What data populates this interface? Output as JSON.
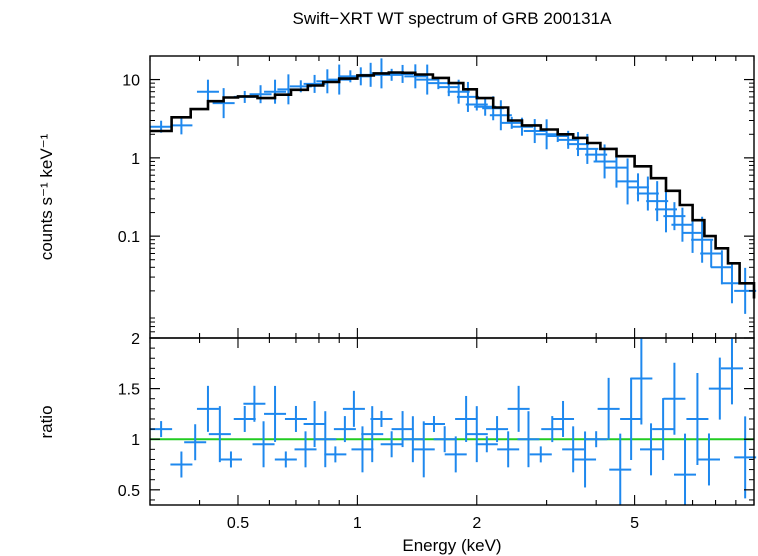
{
  "chart_data": [
    {
      "type": "scatter",
      "title": "Swift−XRT WT spectrum of GRB 200131A",
      "xlabel": "Energy (keV)",
      "ylabel": "counts s⁻¹ keV⁻¹",
      "xscale": "log",
      "yscale": "log",
      "xlim": [
        0.3,
        10
      ],
      "ylim": [
        0.005,
        20
      ],
      "xticks": [
        0.5,
        1,
        2,
        5
      ],
      "xtick_labels": [
        "0.5",
        "1",
        "2",
        "5"
      ],
      "yticks": [
        10,
        1,
        0.1
      ],
      "ytick_labels": [
        "10",
        "1",
        "0.1"
      ],
      "grid": false,
      "colors": {
        "data": "#1e88ee",
        "model": "#000000"
      },
      "series": [
        {
          "kind": "data",
          "x": [
            0.32,
            0.36,
            0.42,
            0.46,
            0.52,
            0.57,
            0.62,
            0.67,
            0.72,
            0.78,
            0.84,
            0.9,
            0.96,
            1.02,
            1.08,
            1.15,
            1.22,
            1.3,
            1.4,
            1.5,
            1.6,
            1.7,
            1.8,
            1.9,
            2.0,
            2.1,
            2.2,
            2.3,
            2.45,
            2.6,
            2.8,
            3.0,
            3.2,
            3.4,
            3.6,
            3.8,
            4.0,
            4.2,
            4.5,
            4.8,
            5.1,
            5.4,
            5.7,
            6.0,
            6.3,
            6.6,
            7.0,
            7.4,
            7.8,
            8.3,
            8.8,
            9.5
          ],
          "y": [
            2.5,
            2.6,
            7.0,
            5.0,
            6.0,
            6.5,
            7.0,
            7.5,
            8.2,
            8.8,
            9.5,
            10.0,
            11.0,
            11.0,
            11.5,
            12.0,
            11.5,
            11.8,
            11.0,
            10.0,
            9.0,
            8.0,
            7.0,
            6.0,
            4.8,
            4.5,
            4.3,
            3.5,
            2.8,
            2.5,
            2.2,
            2.0,
            1.9,
            1.7,
            1.5,
            1.3,
            1.1,
            0.9,
            0.75,
            0.5,
            0.42,
            0.35,
            0.28,
            0.22,
            0.18,
            0.14,
            0.11,
            0.09,
            0.06,
            0.04,
            0.025,
            0.02
          ]
        },
        {
          "kind": "model",
          "x": [
            0.3,
            0.34,
            0.38,
            0.42,
            0.46,
            0.5,
            0.56,
            0.62,
            0.68,
            0.75,
            0.82,
            0.9,
            1.0,
            1.1,
            1.2,
            1.3,
            1.4,
            1.55,
            1.7,
            1.85,
            2.0,
            2.2,
            2.4,
            2.6,
            2.9,
            3.2,
            3.5,
            3.8,
            4.1,
            4.5,
            5.0,
            5.5,
            6.0,
            6.5,
            7.0,
            7.5,
            8.0,
            8.6,
            9.2,
            10.0
          ],
          "y": [
            2.2,
            3.3,
            4.2,
            5.3,
            5.9,
            6.1,
            5.8,
            6.4,
            7.4,
            8.4,
            9.3,
            10.3,
            11.3,
            12.0,
            12.3,
            12.2,
            11.6,
            10.5,
            9.0,
            7.5,
            5.8,
            4.4,
            3.0,
            2.6,
            2.3,
            2.0,
            1.8,
            1.55,
            1.3,
            1.05,
            0.78,
            0.55,
            0.38,
            0.25,
            0.16,
            0.1,
            0.07,
            0.045,
            0.025,
            0.016
          ]
        }
      ]
    },
    {
      "type": "scatter",
      "xlabel": "Energy (keV)",
      "ylabel": "ratio",
      "xscale": "log",
      "xlim": [
        0.3,
        10
      ],
      "ylim": [
        0.35,
        2.0
      ],
      "xticks": [
        0.5,
        1,
        2,
        5
      ],
      "xtick_labels": [
        "0.5",
        "1",
        "2",
        "5"
      ],
      "yticks": [
        2,
        1.5,
        1,
        0.5
      ],
      "ytick_labels": [
        "2",
        "1.5",
        "1",
        "0.5"
      ],
      "reference_line": 1.0,
      "colors": {
        "data": "#1e88ee",
        "reference": "#22cc22"
      },
      "series": [
        {
          "kind": "data",
          "x": [
            0.32,
            0.36,
            0.39,
            0.42,
            0.45,
            0.48,
            0.52,
            0.55,
            0.58,
            0.62,
            0.66,
            0.7,
            0.74,
            0.78,
            0.83,
            0.88,
            0.93,
            0.98,
            1.03,
            1.09,
            1.15,
            1.22,
            1.3,
            1.38,
            1.47,
            1.56,
            1.66,
            1.77,
            1.88,
            2.0,
            2.12,
            2.25,
            2.4,
            2.55,
            2.7,
            2.9,
            3.1,
            3.3,
            3.5,
            3.75,
            4.0,
            4.3,
            4.6,
            4.9,
            5.2,
            5.5,
            5.9,
            6.3,
            6.7,
            7.2,
            7.7,
            8.2,
            8.8,
            9.5
          ],
          "y": [
            1.1,
            0.75,
            0.97,
            1.3,
            1.05,
            0.8,
            1.2,
            1.35,
            0.95,
            1.25,
            0.8,
            1.2,
            0.9,
            1.15,
            1.0,
            0.85,
            1.1,
            1.3,
            0.9,
            1.05,
            1.2,
            0.95,
            1.1,
            1.0,
            0.9,
            1.15,
            1.0,
            0.85,
            1.2,
            1.05,
            0.95,
            1.1,
            0.9,
            1.3,
            1.0,
            0.85,
            1.1,
            1.2,
            0.9,
            0.8,
            1.0,
            1.3,
            0.7,
            1.2,
            1.6,
            0.9,
            1.1,
            1.4,
            0.65,
            1.2,
            0.8,
            1.5,
            1.7,
            0.82
          ]
        }
      ]
    }
  ]
}
